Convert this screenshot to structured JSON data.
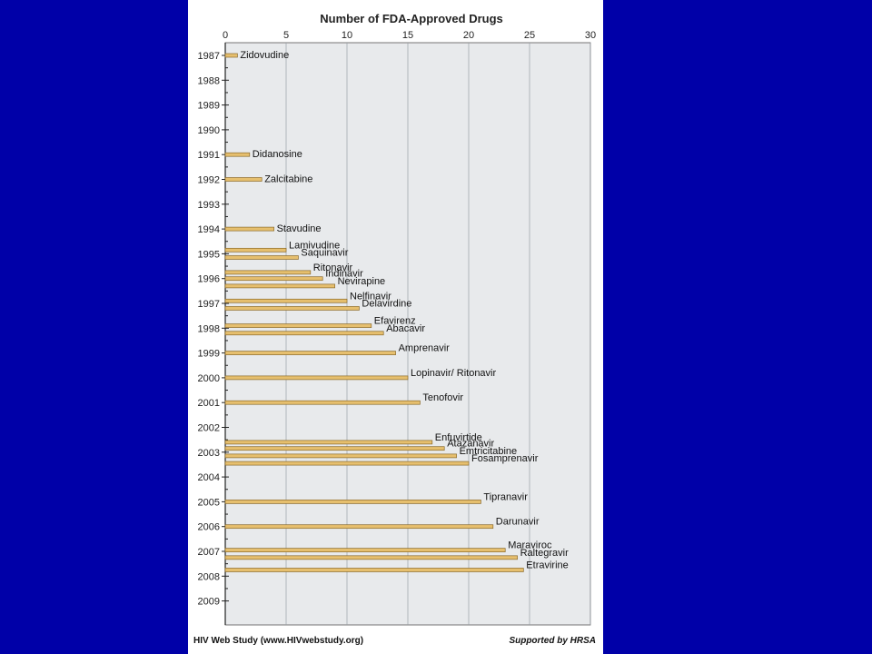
{
  "page": {
    "background": "#0000A8",
    "panel_background": "#ffffff",
    "plot_background": "#E8EAEC",
    "bar_fill": "#E6BF6E",
    "bar_stroke": "#8A6A2A"
  },
  "footer": {
    "left": "HIV Web Study (www.HIVwebstudy.org)",
    "right": "Supported by HRSA"
  },
  "chart_data": {
    "type": "bar",
    "orientation": "horizontal",
    "title": "Number of FDA-Approved Drugs",
    "xlim": [
      0,
      30
    ],
    "x_ticks": [
      0,
      5,
      10,
      15,
      20,
      25,
      30
    ],
    "x_axis_position": "top",
    "y_ticks": [
      "1987",
      "1988",
      "1989",
      "1990",
      "1991",
      "1992",
      "1993",
      "1994",
      "1995",
      "1996",
      "1997",
      "1998",
      "1999",
      "2000",
      "2001",
      "2002",
      "2003",
      "2004",
      "2005",
      "2006",
      "2007",
      "2008",
      "2009"
    ],
    "grid": "vertical",
    "series": [
      {
        "values": [
          {
            "label": "Zidovudine",
            "value": 1,
            "year": 1987.0
          },
          {
            "label": "Didanosine",
            "value": 2,
            "year": 1991.0
          },
          {
            "label": "Zalcitabine",
            "value": 3,
            "year": 1992.0
          },
          {
            "label": "Stavudine",
            "value": 4,
            "year": 1994.0
          },
          {
            "label": "Lamivudine",
            "value": 5,
            "year": 1994.85
          },
          {
            "label": "Saquinavir",
            "value": 6,
            "year": 1995.15
          },
          {
            "label": "Ritonavir",
            "value": 7,
            "year": 1995.75
          },
          {
            "label": "Indinavir",
            "value": 8,
            "year": 1996.0
          },
          {
            "label": "Nevirapine",
            "value": 9,
            "year": 1996.3
          },
          {
            "label": "Nelfinavir",
            "value": 10,
            "year": 1996.9
          },
          {
            "label": "Delavirdine",
            "value": 11,
            "year": 1997.2
          },
          {
            "label": "Efavirenz",
            "value": 12,
            "year": 1997.9
          },
          {
            "label": "Abacavir",
            "value": 13,
            "year": 1998.2
          },
          {
            "label": "Amprenavir",
            "value": 14,
            "year": 1999.0
          },
          {
            "label": "Lopinavir/ Ritonavir",
            "value": 15,
            "year": 2000.0
          },
          {
            "label": "Tenofovir",
            "value": 16,
            "year": 2001.0
          },
          {
            "label": "Enfuvirtide",
            "value": 17,
            "year": 2002.6
          },
          {
            "label": "Atazanavir",
            "value": 18,
            "year": 2002.85
          },
          {
            "label": "Emtricitabine",
            "value": 19,
            "year": 2003.15
          },
          {
            "label": "Fosamprenavir",
            "value": 20,
            "year": 2003.45
          },
          {
            "label": "Tipranavir",
            "value": 21,
            "year": 2005.0
          },
          {
            "label": "Darunavir",
            "value": 22,
            "year": 2006.0
          },
          {
            "label": "Maraviroc",
            "value": 23,
            "year": 2006.95
          },
          {
            "label": "Raltegravir",
            "value": 24,
            "year": 2007.25
          },
          {
            "label": "Etravirine",
            "value": 24.5,
            "year": 2007.75
          }
        ]
      }
    ]
  }
}
